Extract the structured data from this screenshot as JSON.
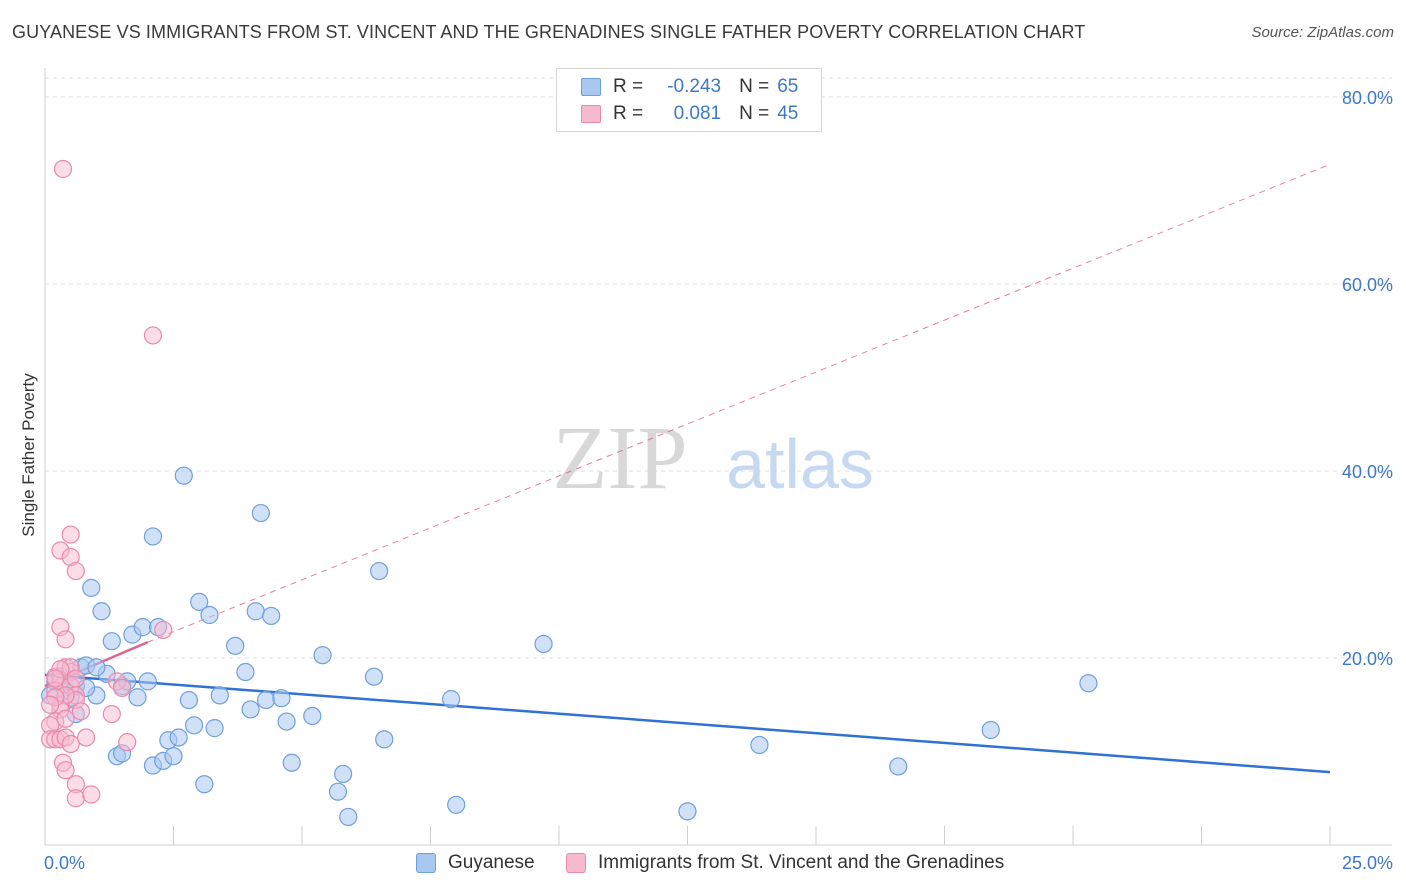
{
  "title": "GUYANESE VS IMMIGRANTS FROM ST. VINCENT AND THE GRENADINES SINGLE FATHER POVERTY CORRELATION CHART",
  "source": "Source: ZipAtlas.com",
  "watermark": {
    "zip": "ZIP",
    "atlas": "atlas"
  },
  "colors": {
    "blue_fill": "#a9c8f0",
    "blue_stroke": "#6f9fdc",
    "blue_line": "#2f72d3",
    "pink_fill": "#f7b9cf",
    "pink_stroke": "#e98aac",
    "pink_line": "#e0628e",
    "axis_text": "#3d78c9",
    "grid": "#dcdcdc"
  },
  "legend": {
    "rows": [
      {
        "r_label": "R =",
        "r_value": "-0.243",
        "n_label": "N =",
        "n_value": "65"
      },
      {
        "r_label": "R =",
        "r_value": "0.081",
        "n_label": "N =",
        "n_value": "45"
      }
    ]
  },
  "chart_data": {
    "type": "scatter",
    "title": "GUYANESE VS IMMIGRANTS FROM ST. VINCENT AND THE GRENADINES SINGLE FATHER POVERTY CORRELATION CHART",
    "xlabel": "",
    "ylabel": "Single Father Poverty",
    "xlim": [
      0,
      25
    ],
    "ylim": [
      0,
      80
    ],
    "x_tick_labels": [
      "0.0%",
      "25.0%"
    ],
    "y_ticks": [
      20,
      40,
      60,
      80
    ],
    "y_tick_labels": [
      "20.0%",
      "40.0%",
      "60.0%",
      "80.0%"
    ],
    "grid": true,
    "legend_placement": "bottom",
    "series": [
      {
        "name": "Guyanese",
        "r": -0.243,
        "n": 65,
        "trend": {
          "x": [
            0,
            25
          ],
          "y": [
            18.2,
            7.8
          ],
          "style": "solid"
        },
        "points": [
          [
            0.1,
            16.0
          ],
          [
            0.2,
            17.5
          ],
          [
            0.3,
            18.0
          ],
          [
            0.4,
            16.5
          ],
          [
            0.5,
            15.8
          ],
          [
            0.6,
            17.0
          ],
          [
            0.6,
            14.0
          ],
          [
            0.7,
            19.0
          ],
          [
            0.8,
            19.2
          ],
          [
            0.9,
            27.5
          ],
          [
            1.0,
            16.0
          ],
          [
            1.1,
            25.0
          ],
          [
            1.2,
            18.3
          ],
          [
            1.3,
            21.8
          ],
          [
            1.4,
            9.5
          ],
          [
            1.5,
            17.0
          ],
          [
            1.5,
            9.8
          ],
          [
            1.6,
            17.5
          ],
          [
            1.7,
            22.5
          ],
          [
            1.8,
            15.8
          ],
          [
            1.9,
            23.3
          ],
          [
            2.0,
            17.5
          ],
          [
            2.1,
            33.0
          ],
          [
            2.1,
            8.5
          ],
          [
            2.2,
            23.3
          ],
          [
            2.3,
            9.0
          ],
          [
            2.4,
            11.2
          ],
          [
            2.5,
            9.5
          ],
          [
            2.6,
            11.5
          ],
          [
            2.7,
            39.5
          ],
          [
            2.8,
            15.5
          ],
          [
            2.9,
            12.8
          ],
          [
            3.0,
            26.0
          ],
          [
            3.1,
            6.5
          ],
          [
            3.2,
            24.6
          ],
          [
            3.3,
            12.5
          ],
          [
            3.4,
            16.0
          ],
          [
            3.7,
            21.3
          ],
          [
            3.9,
            18.5
          ],
          [
            4.0,
            14.5
          ],
          [
            4.1,
            25.0
          ],
          [
            4.2,
            35.5
          ],
          [
            4.3,
            15.5
          ],
          [
            4.4,
            24.5
          ],
          [
            4.6,
            15.7
          ],
          [
            4.7,
            13.2
          ],
          [
            4.8,
            8.8
          ],
          [
            5.2,
            13.8
          ],
          [
            5.4,
            20.3
          ],
          [
            5.7,
            5.7
          ],
          [
            5.8,
            7.6
          ],
          [
            5.9,
            3.0
          ],
          [
            6.4,
            18.0
          ],
          [
            6.5,
            29.3
          ],
          [
            6.6,
            11.3
          ],
          [
            7.9,
            15.6
          ],
          [
            8.0,
            4.3
          ],
          [
            9.7,
            21.5
          ],
          [
            12.5,
            3.6
          ],
          [
            13.9,
            10.7
          ],
          [
            16.6,
            8.4
          ],
          [
            18.4,
            12.3
          ],
          [
            20.3,
            17.3
          ],
          [
            0.8,
            16.8
          ],
          [
            1.0,
            19.0
          ]
        ]
      },
      {
        "name": "Immigrants from St. Vincent and the Grenadines",
        "r": 0.081,
        "n": 45,
        "trend": {
          "x": [
            0,
            2.0
          ],
          "y": [
            17.0,
            21.7
          ],
          "style": "solid",
          "extended_to": [
            25,
            72.8
          ],
          "extended_style": "dashed"
        },
        "points": [
          [
            0.35,
            72.3
          ],
          [
            2.1,
            54.5
          ],
          [
            0.5,
            33.2
          ],
          [
            0.3,
            31.5
          ],
          [
            0.5,
            30.8
          ],
          [
            0.6,
            29.3
          ],
          [
            0.3,
            23.3
          ],
          [
            0.4,
            22.0
          ],
          [
            0.2,
            18.0
          ],
          [
            0.3,
            17.5
          ],
          [
            0.4,
            19.0
          ],
          [
            0.5,
            18.5
          ],
          [
            0.5,
            17.0
          ],
          [
            0.6,
            16.0
          ],
          [
            0.6,
            15.5
          ],
          [
            0.2,
            16.5
          ],
          [
            0.3,
            15.0
          ],
          [
            0.4,
            16.0
          ],
          [
            0.3,
            14.5
          ],
          [
            0.2,
            13.2
          ],
          [
            0.4,
            13.5
          ],
          [
            0.1,
            12.8
          ],
          [
            0.1,
            11.3
          ],
          [
            0.2,
            11.3
          ],
          [
            0.3,
            11.3
          ],
          [
            0.4,
            11.5
          ],
          [
            0.5,
            10.8
          ],
          [
            0.8,
            11.5
          ],
          [
            0.35,
            8.8
          ],
          [
            0.4,
            8.0
          ],
          [
            0.6,
            6.5
          ],
          [
            0.6,
            5.0
          ],
          [
            0.9,
            5.4
          ],
          [
            1.3,
            14.0
          ],
          [
            1.4,
            17.5
          ],
          [
            1.5,
            16.8
          ],
          [
            1.6,
            11.0
          ],
          [
            2.3,
            23.0
          ],
          [
            0.2,
            15.8
          ],
          [
            0.1,
            15.0
          ],
          [
            0.7,
            14.3
          ],
          [
            0.5,
            19.0
          ],
          [
            0.3,
            18.8
          ],
          [
            0.2,
            17.8
          ],
          [
            0.6,
            17.8
          ]
        ]
      }
    ],
    "bottom_legend": [
      "Guyanese",
      "Immigrants from St. Vincent and the Grenadines"
    ]
  }
}
